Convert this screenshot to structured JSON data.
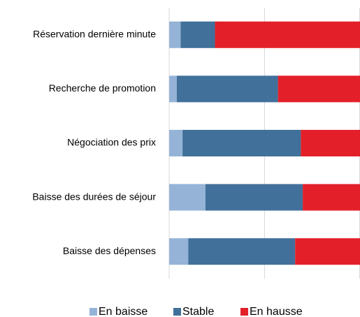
{
  "chart_data": {
    "type": "stacked_barh",
    "categories": [
      "Réservation dernière minute",
      "Recherche de promotion",
      "Négociation des prix",
      "Baisse des durées de séjour",
      "Baisse des dépenses"
    ],
    "series": [
      {
        "name": "En baisse",
        "color": "#95b3d7",
        "values": [
          6,
          4,
          7,
          19,
          10
        ]
      },
      {
        "name": "Stable",
        "color": "#41709a",
        "values": [
          18,
          53,
          62,
          51,
          56
        ]
      },
      {
        "name": "En hausse",
        "color": "#e3202a",
        "values": [
          76,
          43,
          31,
          30,
          34
        ]
      }
    ],
    "xlim": [
      0,
      100
    ],
    "xticks": [
      0,
      50,
      100
    ],
    "grid": true,
    "legend": "bottom"
  }
}
